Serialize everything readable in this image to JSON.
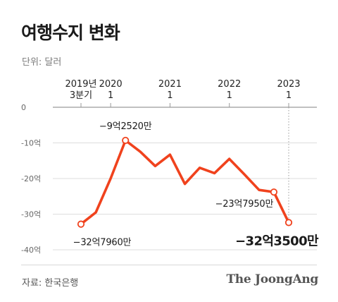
{
  "title": "여행수지 변화",
  "unit_label": "단위: 달러",
  "source": "자료: 한국은행",
  "logo": "The JoongAng",
  "colors": {
    "line": "#f0421d",
    "grid": "#dddddd",
    "axis": "#9a9a9a",
    "text": "#222222"
  },
  "chart_data": {
    "type": "line",
    "title": "여행수지 변화",
    "ylabel": "",
    "xlabel": "",
    "ylim": [
      -40,
      0
    ],
    "grid": true,
    "y_ticks": [
      0,
      -10,
      -20,
      -30,
      -40
    ],
    "y_tick_labels": [
      "0",
      "-10억",
      "-20억",
      "-30억",
      "-40억"
    ],
    "x_ticks": [
      {
        "x": 0,
        "line1": "2019년",
        "line2": "3분기"
      },
      {
        "x": 2,
        "line1": "2020",
        "line2": "1"
      },
      {
        "x": 6,
        "line1": "2021",
        "line2": "1"
      },
      {
        "x": 10,
        "line1": "2022",
        "line2": "1"
      },
      {
        "x": 14,
        "line1": "2023",
        "line2": "1"
      }
    ],
    "series": [
      {
        "values": [
          -32.8,
          -29.5,
          -20.0,
          -9.3,
          -12.5,
          -16.5,
          -13.3,
          -21.5,
          -17.0,
          -18.5,
          -14.5,
          -18.8,
          -23.2,
          -23.8,
          -32.35
        ]
      }
    ],
    "annotations": [
      {
        "index": 0,
        "text": "−32억7960만",
        "emphasis": false
      },
      {
        "index": 3,
        "text": "−9억2520만",
        "emphasis": false
      },
      {
        "index": 13,
        "text": "−23억7950만",
        "emphasis": false
      },
      {
        "index": 14,
        "text": "−32억3500만",
        "emphasis": true
      }
    ]
  }
}
